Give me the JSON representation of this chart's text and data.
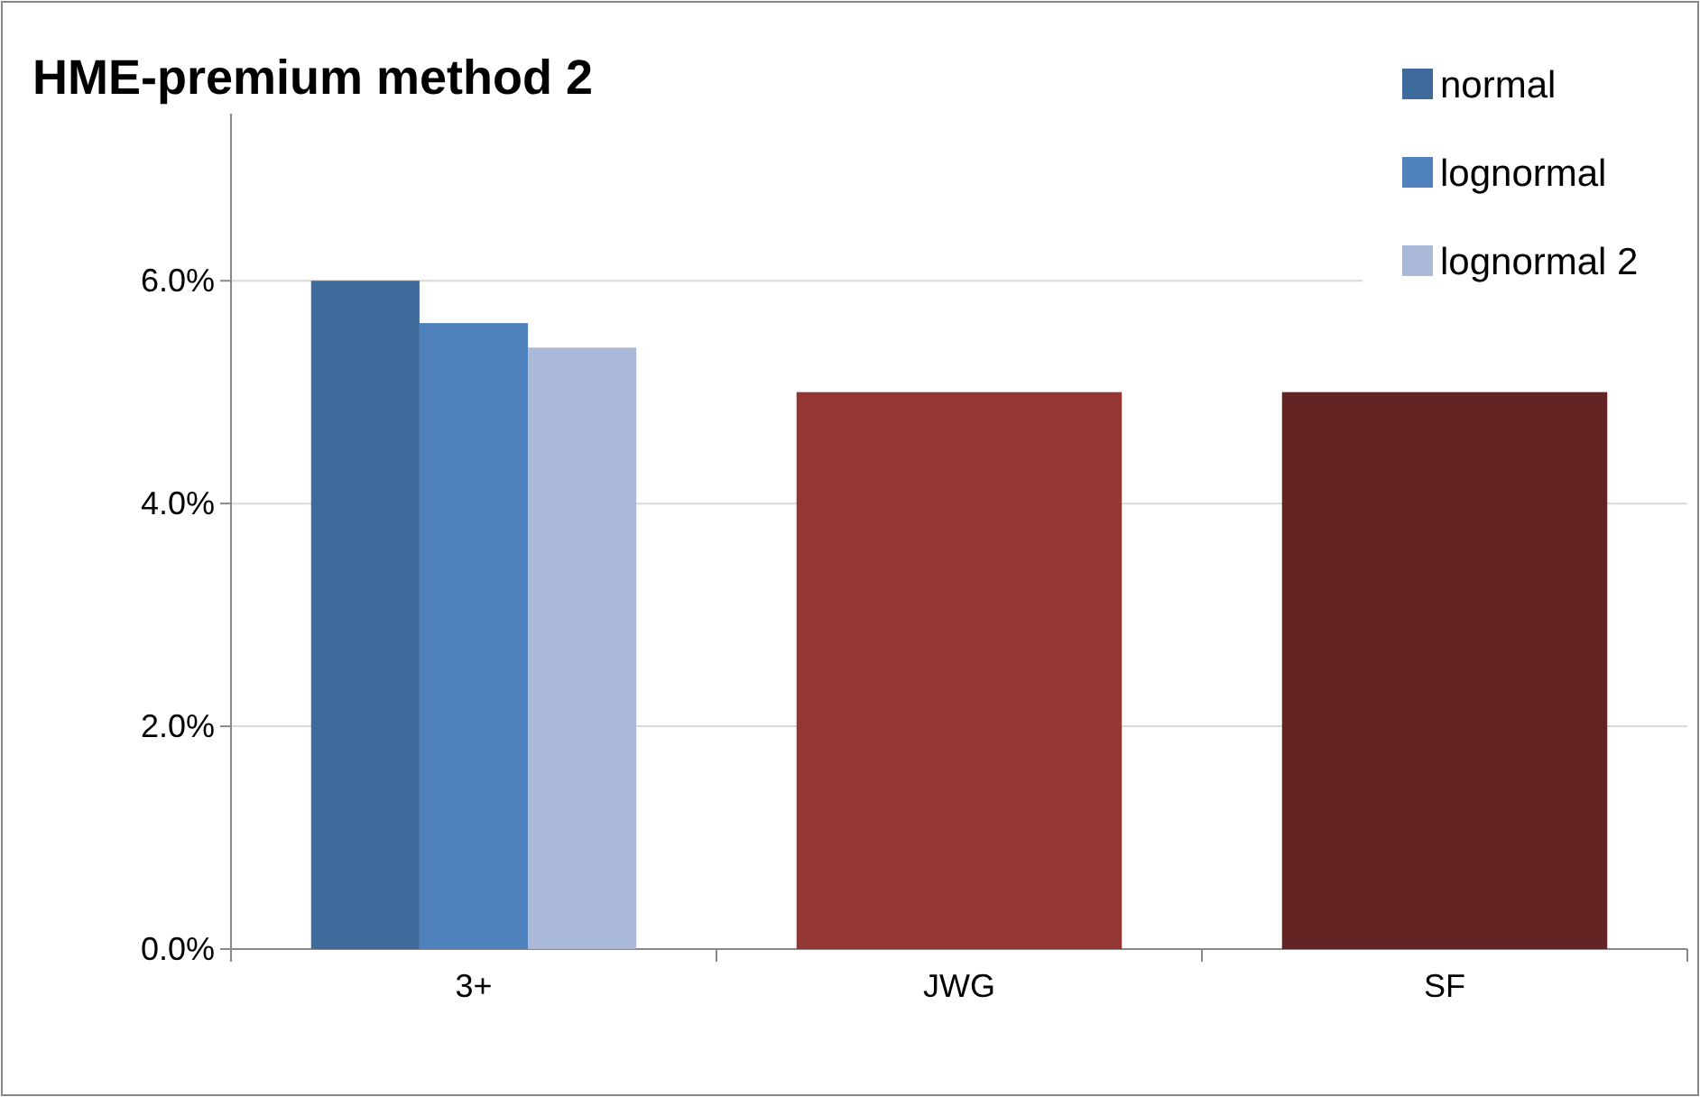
{
  "chart_data": {
    "type": "bar",
    "title": "HME-premium method 2",
    "categories": [
      "3+",
      "JWG",
      "SF"
    ],
    "series": [
      {
        "name": "normal",
        "color": "#3f6a9c",
        "values": [
          6.0,
          null,
          null
        ]
      },
      {
        "name": "lognormal",
        "color": "#4f81bd",
        "values": [
          5.62,
          null,
          null
        ]
      },
      {
        "name": "lognormal 2",
        "color": "#aab9d8",
        "values": [
          5.4,
          null,
          null
        ]
      },
      {
        "colors": [
          null,
          "#943634",
          "#632423"
        ],
        "values": [
          null,
          5.0,
          5.0
        ]
      }
    ],
    "ylim": [
      0,
      7.5
    ],
    "yticks": [
      {
        "value": 0,
        "label": "0.0%"
      },
      {
        "value": 2,
        "label": "2.0%"
      },
      {
        "value": 4,
        "label": "4.0%"
      },
      {
        "value": 6,
        "label": "6.0%"
      }
    ],
    "grid": "y",
    "legend": "top right"
  }
}
